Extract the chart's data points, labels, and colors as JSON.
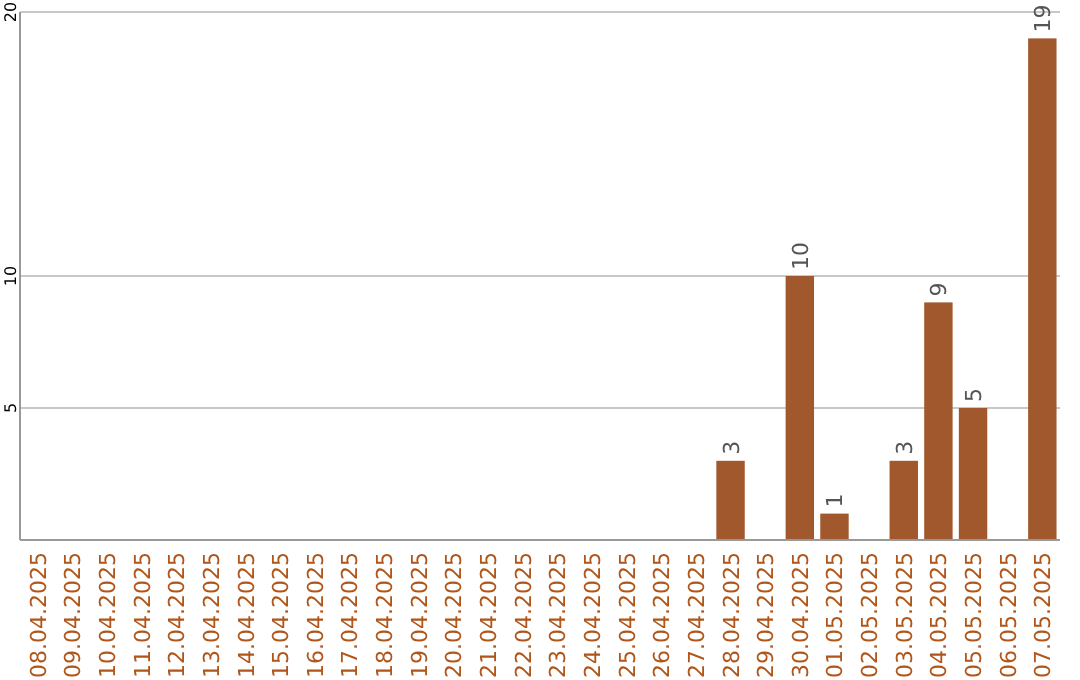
{
  "chart_data": {
    "type": "bar",
    "categories": [
      "08.04.2025",
      "09.04.2025",
      "10.04.2025",
      "11.04.2025",
      "12.04.2025",
      "13.04.2025",
      "14.04.2025",
      "15.04.2025",
      "16.04.2025",
      "17.04.2025",
      "18.04.2025",
      "19.04.2025",
      "20.04.2025",
      "21.04.2025",
      "22.04.2025",
      "23.04.2025",
      "24.04.2025",
      "25.04.2025",
      "26.04.2025",
      "27.04.2025",
      "28.04.2025",
      "29.04.2025",
      "30.04.2025",
      "01.05.2025",
      "02.05.2025",
      "03.05.2025",
      "04.05.2025",
      "05.05.2025",
      "06.05.2025",
      "07.05.2025"
    ],
    "values": [
      null,
      null,
      null,
      null,
      null,
      null,
      null,
      null,
      null,
      null,
      null,
      null,
      null,
      null,
      null,
      null,
      null,
      null,
      null,
      null,
      3,
      null,
      10,
      1,
      null,
      3,
      9,
      5,
      null,
      19
    ],
    "color": "#a0582c",
    "ylim": [
      0,
      20
    ],
    "yticks": [
      5,
      10,
      20
    ],
    "grid": "y",
    "data_labels": true
  }
}
